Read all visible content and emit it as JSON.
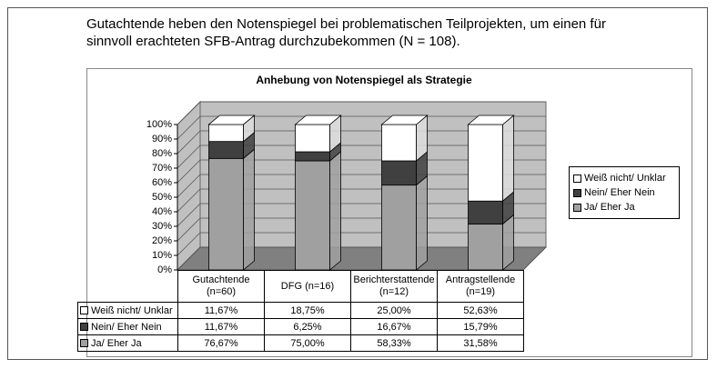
{
  "caption": "Gutachtende heben den Notenspiegel bei problematischen Teilprojekten, um einen für sinnvoll erachteten SFB-Antrag durchzubekommen (N = 108).",
  "chart_data": {
    "type": "stacked_bar_3d",
    "title": "Anhebung von Notenspiegel als Strategie",
    "categories": [
      "Gutachtende (n=60)",
      "DFG (n=16)",
      "Berichterstattende (n=12)",
      "Antragstellende (n=19)"
    ],
    "series": [
      {
        "name": "Weiß nicht/ Unklar",
        "color": "#ffffff",
        "values": [
          11.67,
          18.75,
          25.0,
          52.63
        ],
        "value_labels": [
          "11,67%",
          "18,75%",
          "25,00%",
          "52,63%"
        ]
      },
      {
        "name": "Nein/ Eher Nein",
        "color": "#404040",
        "values": [
          11.67,
          6.25,
          16.67,
          15.79
        ],
        "value_labels": [
          "11,67%",
          "6,25%",
          "16,67%",
          "15,79%"
        ]
      },
      {
        "name": "Ja/ Eher Ja",
        "color": "#a0a0a0",
        "values": [
          76.67,
          75.0,
          58.33,
          31.58
        ],
        "value_labels": [
          "76,67%",
          "75,00%",
          "58,33%",
          "31,58%"
        ]
      }
    ],
    "ylim": [
      0,
      100
    ],
    "yticks": [
      {
        "value": 0,
        "label": "0%"
      },
      {
        "value": 10,
        "label": "10%"
      },
      {
        "value": 20,
        "label": "20%"
      },
      {
        "value": 30,
        "label": "30%"
      },
      {
        "value": 40,
        "label": "40%"
      },
      {
        "value": 50,
        "label": "50%"
      },
      {
        "value": 60,
        "label": "60%"
      },
      {
        "value": 70,
        "label": "70%"
      },
      {
        "value": 80,
        "label": "80%"
      },
      {
        "value": 90,
        "label": "90%"
      },
      {
        "value": 100,
        "label": "100%"
      }
    ],
    "grid": true,
    "legend": "right"
  }
}
